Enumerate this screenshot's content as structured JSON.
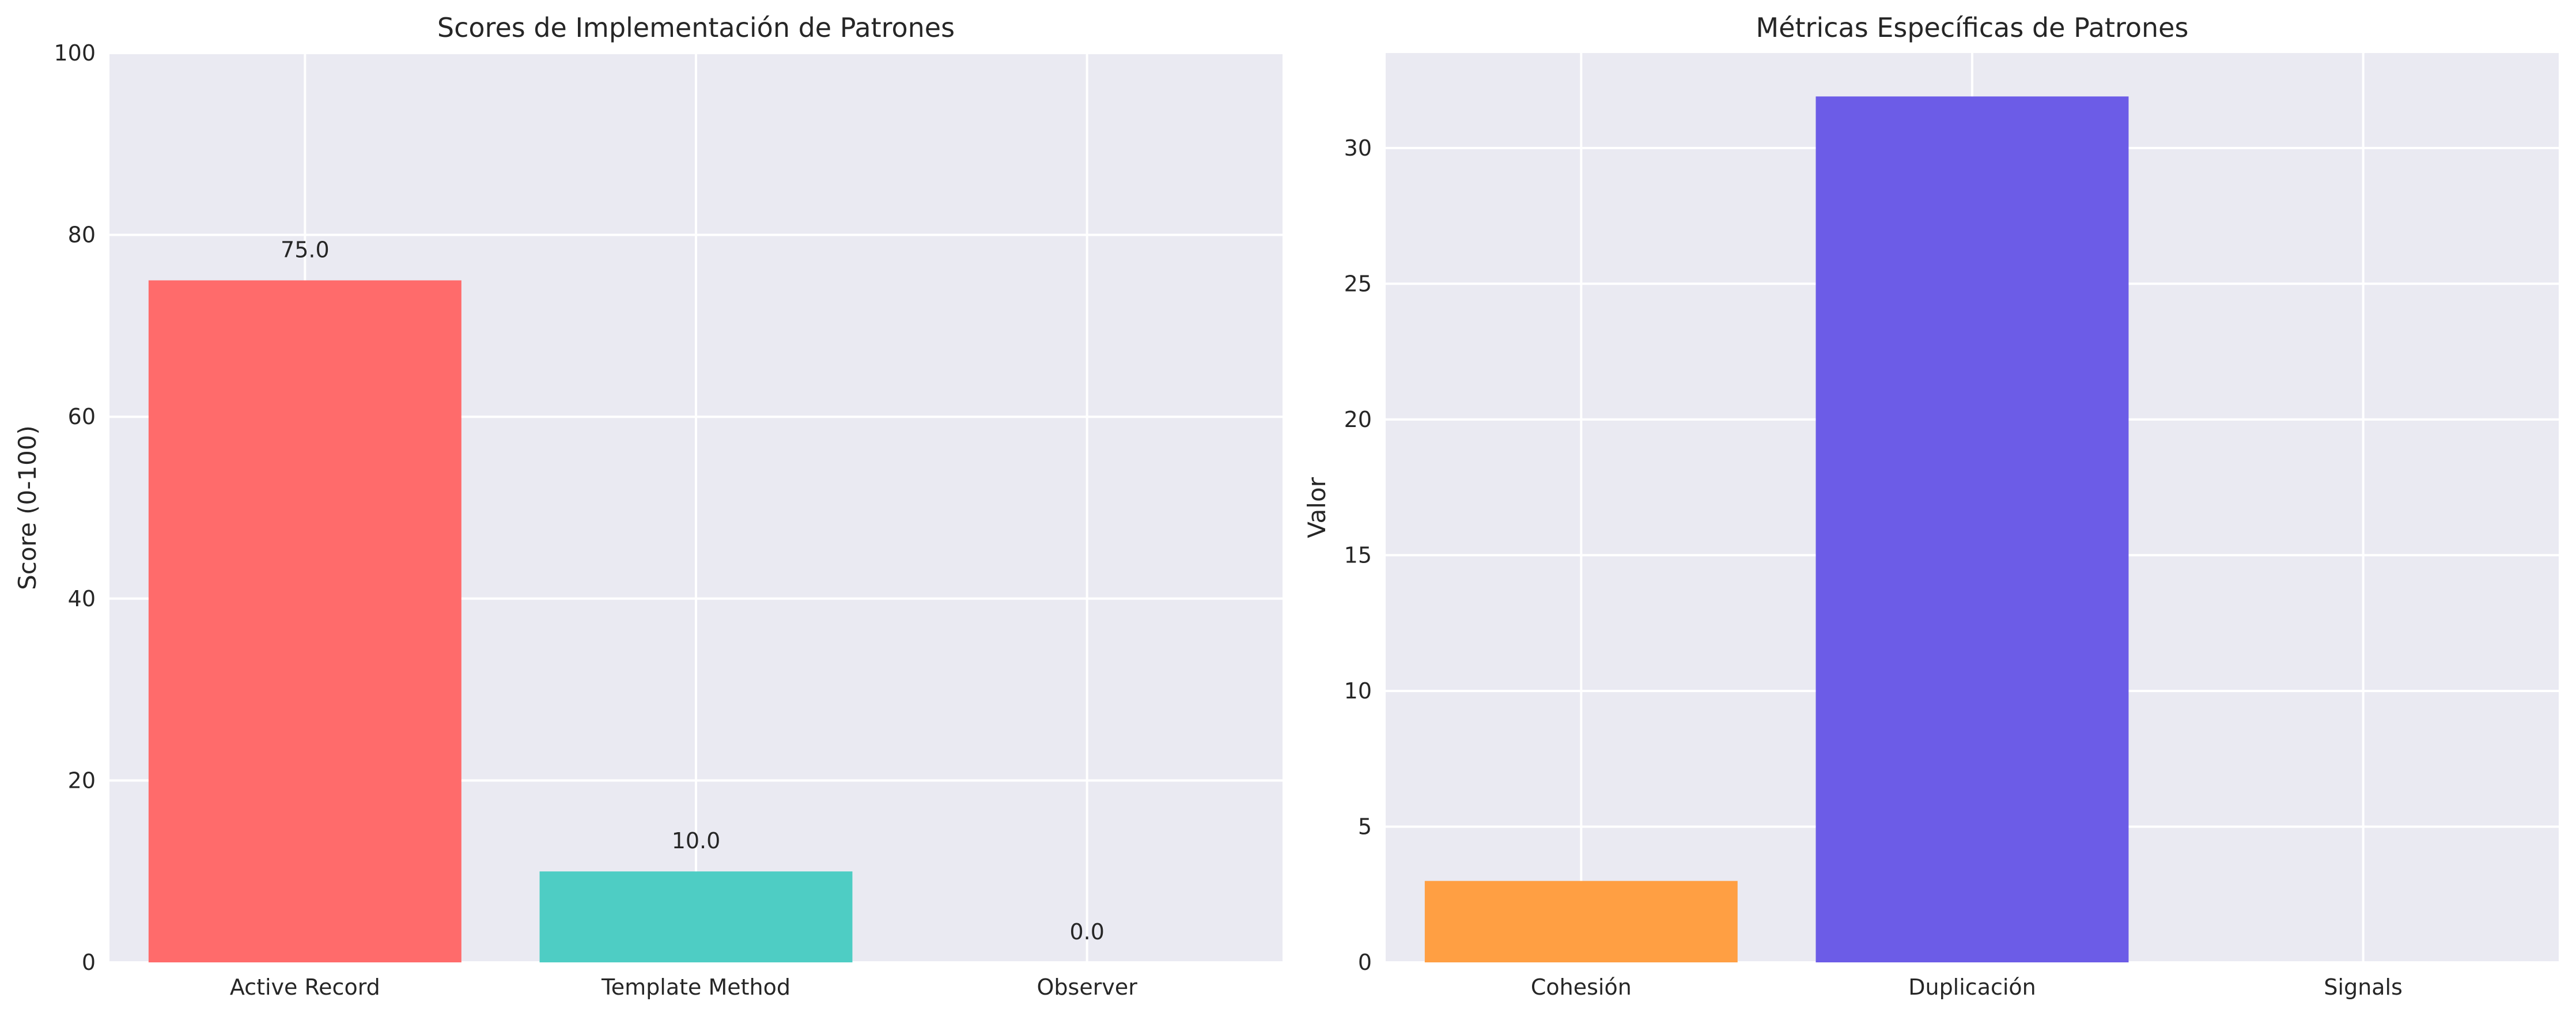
{
  "chart_data": [
    {
      "type": "bar",
      "title": "Scores de Implementación de Patrones",
      "xlabel": "",
      "ylabel": "Score (0-100)",
      "ylim": [
        0,
        100
      ],
      "yticks": [
        0,
        20,
        40,
        60,
        80,
        100
      ],
      "grid": true,
      "categories": [
        "Active Record",
        "Template Method",
        "Observer"
      ],
      "values": [
        75.0,
        10.0,
        0.0
      ],
      "value_labels": [
        "75.0",
        "10.0",
        "0.0"
      ],
      "colors": [
        "#ff6b6b",
        "#4ecdc4",
        "#45b7d1"
      ]
    },
    {
      "type": "bar",
      "title": "Métricas Específicas de Patrones",
      "xlabel": "",
      "ylabel": "Valor",
      "ylim": [
        0,
        33.5
      ],
      "yticks": [
        0,
        5,
        10,
        15,
        20,
        25,
        30
      ],
      "grid": true,
      "categories": [
        "Cohesión",
        "Duplicación",
        "Signals"
      ],
      "values": [
        3.0,
        31.9,
        0.0
      ],
      "colors": [
        "#ff9f43",
        "#6c5ce7",
        "#a29bfe"
      ]
    }
  ]
}
